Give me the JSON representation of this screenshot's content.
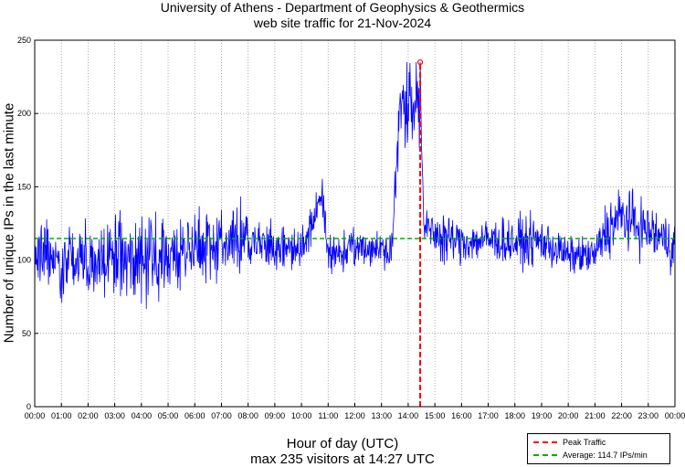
{
  "chart_data": {
    "type": "line",
    "title_line1": "University of Athens - Department of Geophysics & Geothermics",
    "title_line2": "web site traffic for 21-Nov-2024",
    "xlabel": "Hour of day (UTC)",
    "ylabel": "Number of unique IPs in the last minute",
    "subtitle": "max 235 visitors at 14:27 UTC",
    "xlim": [
      0,
      24
    ],
    "ylim": [
      0,
      250
    ],
    "grid": true,
    "x_ticks": [
      "00:00",
      "01:00",
      "02:00",
      "03:00",
      "04:00",
      "05:00",
      "06:00",
      "07:00",
      "08:00",
      "09:00",
      "10:00",
      "11:00",
      "12:00",
      "13:00",
      "14:00",
      "15:00",
      "16:00",
      "17:00",
      "18:00",
      "19:00",
      "20:00",
      "21:00",
      "22:00",
      "23:00",
      "00:00"
    ],
    "y_ticks": [
      "0",
      "50",
      "100",
      "150",
      "200",
      "250"
    ],
    "y_tick_values": [
      0,
      50,
      100,
      150,
      200,
      250
    ],
    "series_color": "#0000ff",
    "traffic_profile": {
      "hours": [
        0,
        1,
        2,
        3,
        4,
        5,
        6,
        7,
        8,
        9,
        10,
        10.5,
        10.8,
        11,
        12,
        13,
        13.4,
        13.7,
        14,
        14.45,
        14.6,
        15,
        16,
        17,
        18,
        19,
        20,
        21,
        21.4,
        22,
        23,
        24
      ],
      "mean_ips": [
        105,
        100,
        100,
        103,
        100,
        103,
        110,
        113,
        113,
        108,
        107,
        130,
        140,
        104,
        108,
        108,
        110,
        205,
        210,
        210,
        120,
        118,
        112,
        114,
        112,
        113,
        103,
        103,
        120,
        130,
        120,
        110
      ],
      "spread": [
        13,
        13,
        13,
        13,
        13,
        13,
        12,
        12,
        12,
        7,
        7,
        8,
        8,
        7,
        6,
        6,
        6,
        14,
        14,
        14,
        8,
        8,
        7,
        7,
        8,
        8,
        6,
        6,
        10,
        10,
        9,
        9
      ]
    },
    "peak": {
      "hour": 14.45,
      "value": 235,
      "color": "#ff0000"
    },
    "average": {
      "value": 114.7,
      "color": "#00b000"
    },
    "legend": {
      "position": "bottom-right",
      "entries": [
        {
          "label": "Peak Traffic",
          "color": "#ff0000"
        },
        {
          "label": "Average: 114.7 IPs/min",
          "color": "#00b000"
        }
      ]
    }
  }
}
